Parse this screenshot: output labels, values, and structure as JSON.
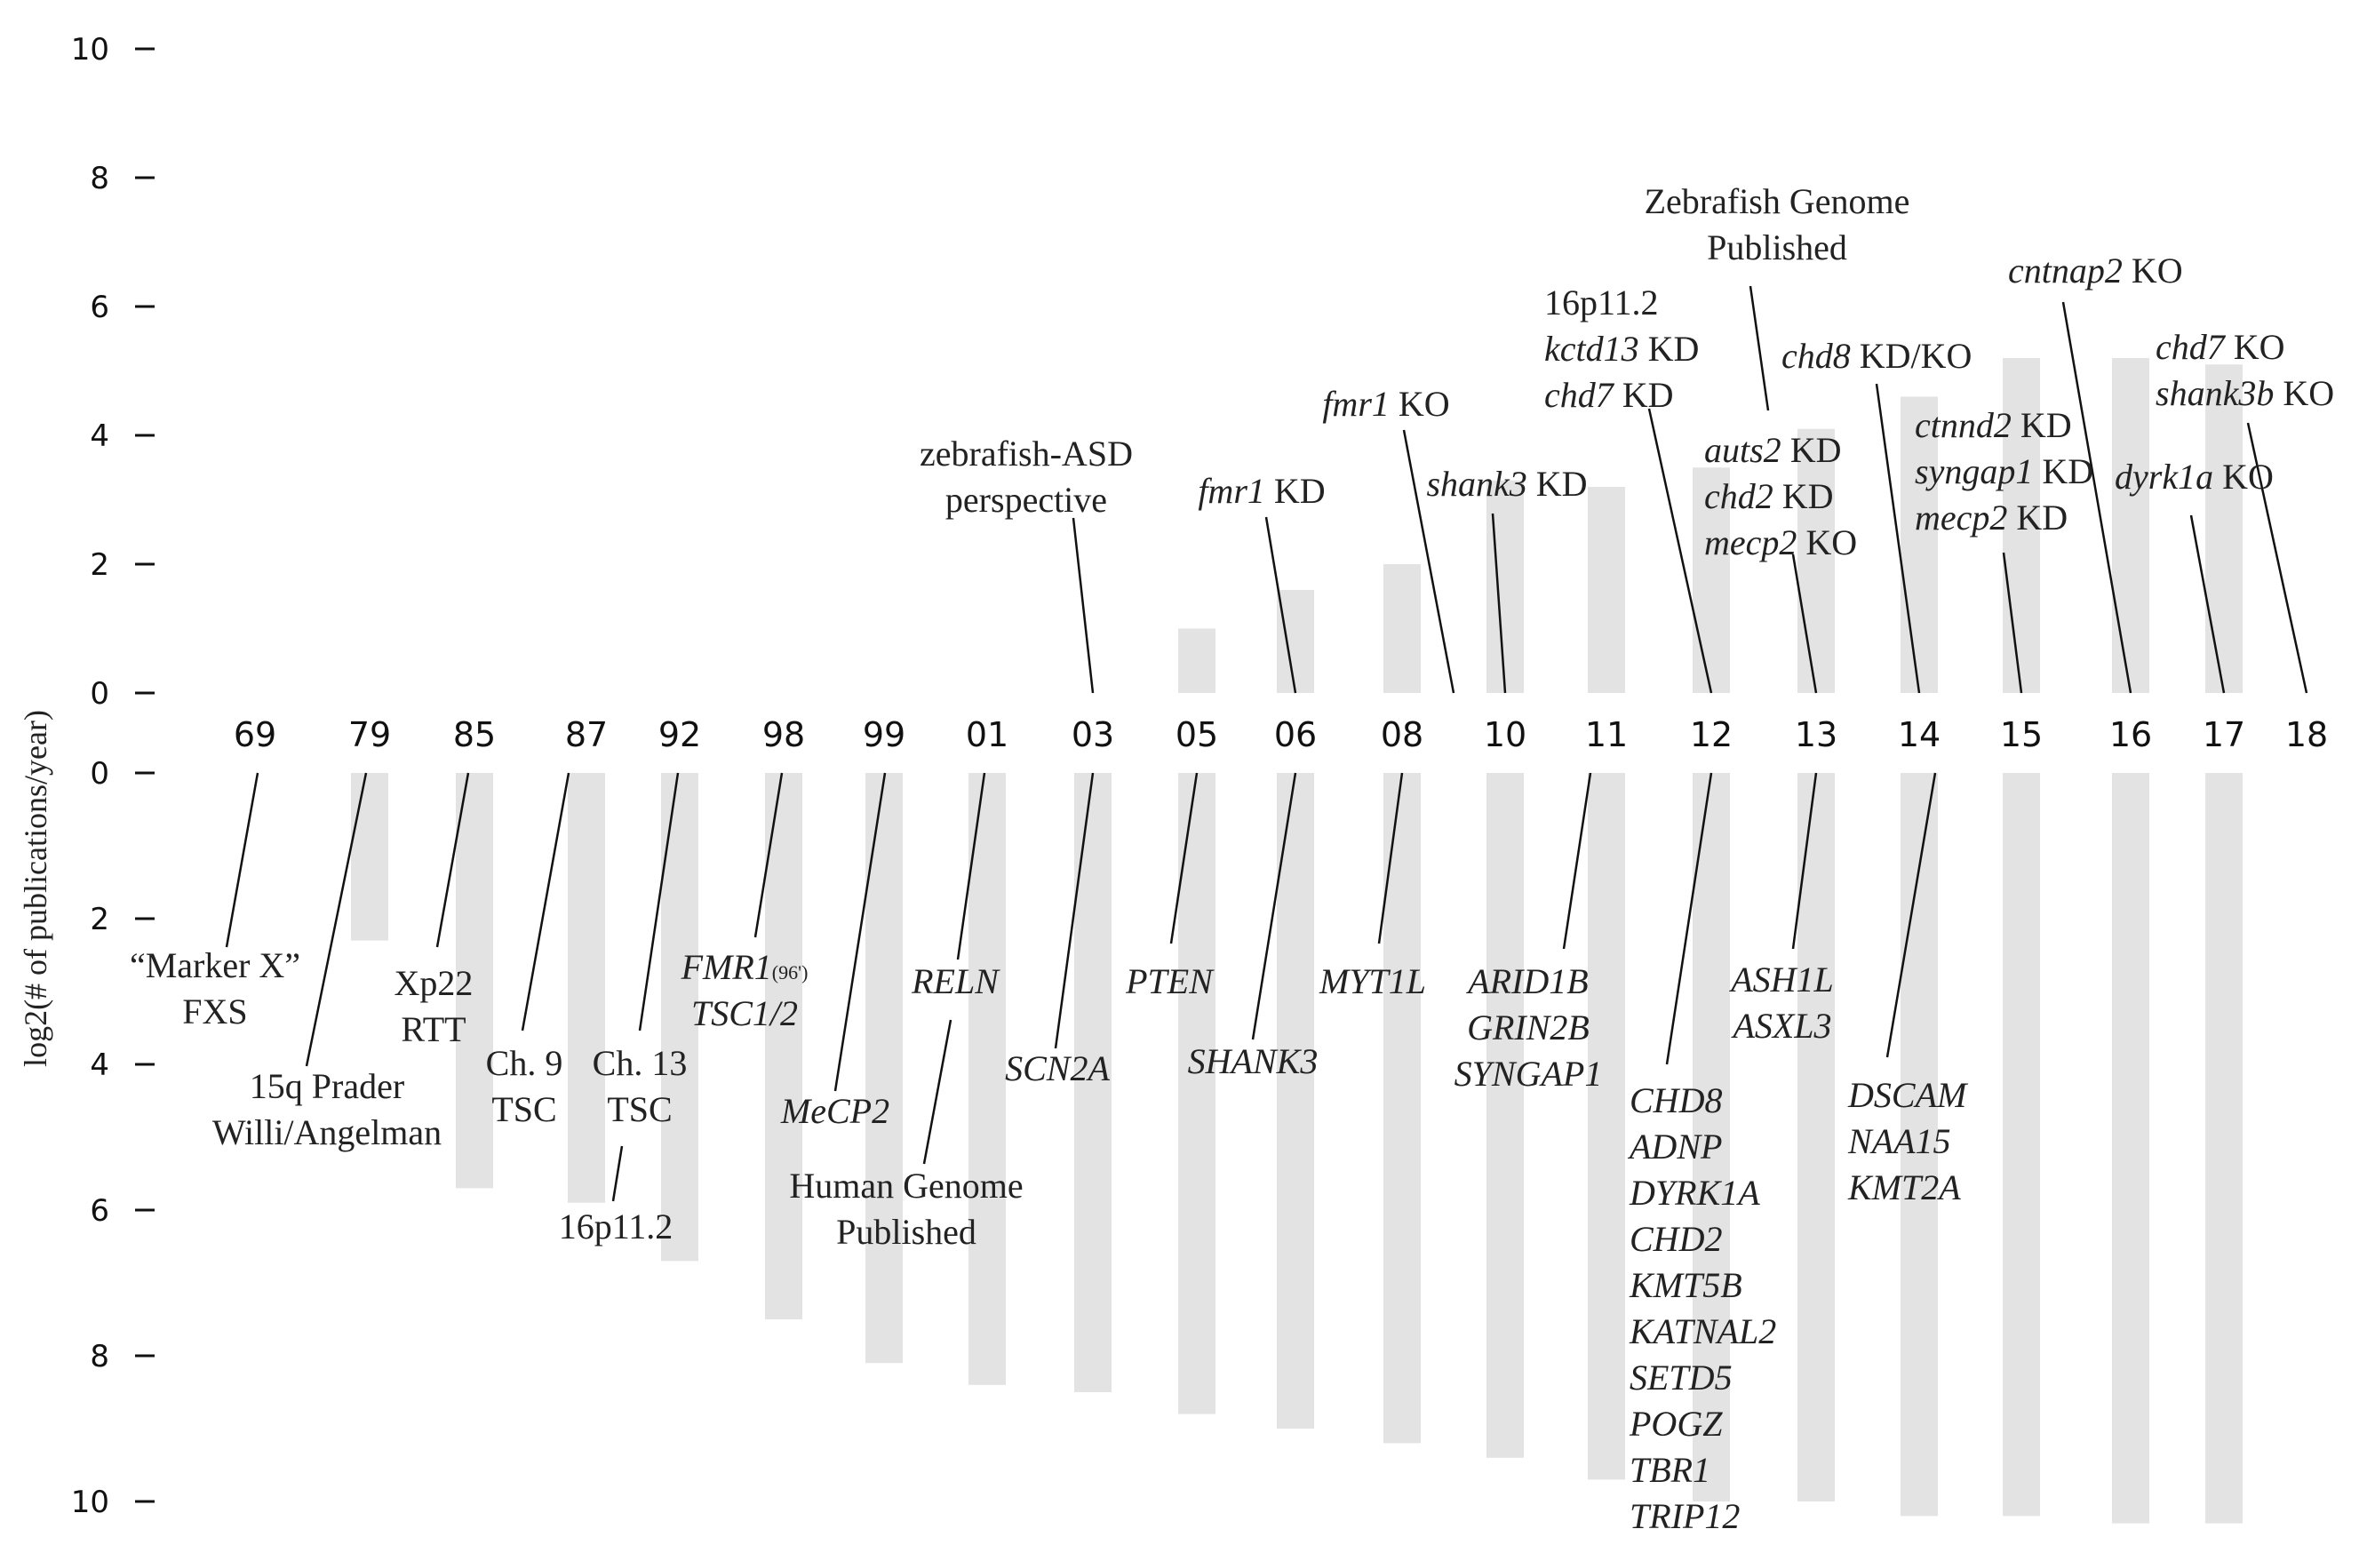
{
  "chart_data": {
    "type": "bar",
    "title": "",
    "ylabel": "log2(# of publications/year)",
    "categories": [
      "69",
      "79",
      "85",
      "87",
      "92",
      "98",
      "99",
      "01",
      "03",
      "05",
      "06",
      "08",
      "10",
      "11",
      "12",
      "13",
      "14",
      "15",
      "16",
      "17",
      "18"
    ],
    "ylim": [
      0,
      10
    ],
    "yticks": [
      0,
      2,
      4,
      6,
      8,
      10
    ],
    "grid": false,
    "series": [
      {
        "panel": "top",
        "values": [
          0,
          0,
          0,
          0,
          0,
          0,
          0,
          0,
          0,
          1.0,
          1.6,
          2.0,
          3.3,
          3.2,
          3.5,
          4.1,
          4.6,
          5.2,
          5.2,
          5.1,
          0
        ]
      },
      {
        "panel": "bottom",
        "values": [
          0,
          2.3,
          5.7,
          5.9,
          6.7,
          7.5,
          8.1,
          8.4,
          8.5,
          8.8,
          9.0,
          9.2,
          9.4,
          9.7,
          10.0,
          10.0,
          10.2,
          10.2,
          10.3,
          10.3,
          0
        ]
      }
    ],
    "annotations_top": [
      {
        "id": "zebrafish-asd",
        "at": "03",
        "lines": [
          {
            "parts": [
              {
                "t": "zebrafish-ASD",
                "i": false
              }
            ]
          },
          {
            "parts": [
              {
                "t": "perspective",
                "i": false
              }
            ]
          }
        ]
      },
      {
        "id": "fmr1-kd",
        "at": "06",
        "lines": [
          {
            "parts": [
              {
                "t": "fmr1",
                "i": true
              },
              {
                "t": " KD",
                "i": false
              }
            ]
          }
        ]
      },
      {
        "id": "fmr1-ko",
        "at": "09",
        "lines": [
          {
            "parts": [
              {
                "t": "fmr1",
                "i": true
              },
              {
                "t": " KO",
                "i": false
              }
            ]
          }
        ]
      },
      {
        "id": "shank3-kd",
        "at": "10",
        "lines": [
          {
            "parts": [
              {
                "t": "shank3",
                "i": true
              },
              {
                "t": " KD",
                "i": false
              }
            ]
          }
        ]
      },
      {
        "id": "16p-kctd13-chd7",
        "at": "12",
        "lines": [
          {
            "parts": [
              {
                "t": "16p11.2",
                "i": false
              }
            ]
          },
          {
            "parts": [
              {
                "t": "kctd13",
                "i": true
              },
              {
                "t": " KD",
                "i": false
              }
            ]
          },
          {
            "parts": [
              {
                "t": "chd7",
                "i": true
              },
              {
                "t": " KD",
                "i": false
              }
            ]
          }
        ]
      },
      {
        "id": "zebrafish-genome",
        "at": "12.5",
        "lines": [
          {
            "parts": [
              {
                "t": "Zebrafish Genome",
                "i": false
              }
            ]
          },
          {
            "parts": [
              {
                "t": "Published",
                "i": false
              }
            ]
          }
        ]
      },
      {
        "id": "auts2-chd2-mecp2",
        "at": "13",
        "lines": [
          {
            "parts": [
              {
                "t": "auts2",
                "i": true
              },
              {
                "t": " KD",
                "i": false
              }
            ]
          },
          {
            "parts": [
              {
                "t": "chd2",
                "i": true
              },
              {
                "t": " KD",
                "i": false
              }
            ]
          },
          {
            "parts": [
              {
                "t": "mecp2",
                "i": true
              },
              {
                "t": " KO",
                "i": false
              }
            ]
          }
        ]
      },
      {
        "id": "chd8-kdko",
        "at": "14",
        "lines": [
          {
            "parts": [
              {
                "t": "chd8",
                "i": true
              },
              {
                "t": " KD/KO",
                "i": false
              }
            ]
          }
        ]
      },
      {
        "id": "ctnnd2-syngap1-mecp2",
        "at": "15",
        "lines": [
          {
            "parts": [
              {
                "t": "ctnnd2",
                "i": true
              },
              {
                "t": " KD",
                "i": false
              }
            ]
          },
          {
            "parts": [
              {
                "t": "syngap1",
                "i": true
              },
              {
                "t": " KD",
                "i": false
              }
            ]
          },
          {
            "parts": [
              {
                "t": "mecp2",
                "i": true
              },
              {
                "t": " KD",
                "i": false
              }
            ]
          }
        ]
      },
      {
        "id": "cntnap2-ko",
        "at": "16",
        "lines": [
          {
            "parts": [
              {
                "t": "cntnap2",
                "i": true
              },
              {
                "t": " KO",
                "i": false
              }
            ]
          }
        ]
      },
      {
        "id": "dyrk1a-ko",
        "at": "17",
        "lines": [
          {
            "parts": [
              {
                "t": "dyrk1a",
                "i": true
              },
              {
                "t": " KO",
                "i": false
              }
            ]
          }
        ]
      },
      {
        "id": "chd7-shank3b-ko",
        "at": "18",
        "lines": [
          {
            "parts": [
              {
                "t": "chd7",
                "i": true
              },
              {
                "t": " KO",
                "i": false
              }
            ]
          },
          {
            "parts": [
              {
                "t": "shank3b",
                "i": true
              },
              {
                "t": " KO",
                "i": false
              }
            ]
          }
        ]
      }
    ],
    "annotations_bottom": [
      {
        "id": "marker-x",
        "at": "69",
        "lines": [
          {
            "parts": [
              {
                "t": "“Marker X”",
                "i": false
              }
            ]
          },
          {
            "parts": [
              {
                "t": "FXS",
                "i": false
              }
            ]
          }
        ]
      },
      {
        "id": "15q",
        "at": "79",
        "lines": [
          {
            "parts": [
              {
                "t": "15q Prader",
                "i": false
              }
            ]
          },
          {
            "parts": [
              {
                "t": "Willi/Angelman",
                "i": false
              }
            ]
          }
        ]
      },
      {
        "id": "xp22",
        "at": "85",
        "lines": [
          {
            "parts": [
              {
                "t": "Xp22",
                "i": false
              }
            ]
          },
          {
            "parts": [
              {
                "t": "RTT",
                "i": false
              }
            ]
          }
        ]
      },
      {
        "id": "ch9",
        "at": "87",
        "lines": [
          {
            "parts": [
              {
                "t": "Ch. 9",
                "i": false
              }
            ]
          },
          {
            "parts": [
              {
                "t": "TSC",
                "i": false
              }
            ]
          }
        ]
      },
      {
        "id": "ch13",
        "at": "92",
        "lines": [
          {
            "parts": [
              {
                "t": "Ch. 13",
                "i": false
              }
            ]
          },
          {
            "parts": [
              {
                "t": "TSC",
                "i": false
              }
            ]
          }
        ]
      },
      {
        "id": "16p-bottom",
        "at": "92",
        "lines": [
          {
            "parts": [
              {
                "t": "16p11.2",
                "i": false
              }
            ]
          }
        ]
      },
      {
        "id": "fmr1-tsc",
        "at": "98",
        "lines": [
          {
            "parts": [
              {
                "t": "FMR1",
                "i": true
              },
              {
                "t": "(96')",
                "i": false,
                "small": true
              }
            ]
          },
          {
            "parts": [
              {
                "t": "TSC1/2",
                "i": true
              }
            ]
          }
        ]
      },
      {
        "id": "mecp2",
        "at": "99",
        "lines": [
          {
            "parts": [
              {
                "t": "MeCP2",
                "i": true
              }
            ]
          }
        ]
      },
      {
        "id": "reln",
        "at": "01",
        "lines": [
          {
            "parts": [
              {
                "t": "RELN",
                "i": true
              }
            ]
          }
        ]
      },
      {
        "id": "human-genome",
        "at": "01",
        "lines": [
          {
            "parts": [
              {
                "t": "Human Genome",
                "i": false
              }
            ]
          },
          {
            "parts": [
              {
                "t": "Published",
                "i": false
              }
            ]
          }
        ]
      },
      {
        "id": "scn2a",
        "at": "03",
        "lines": [
          {
            "parts": [
              {
                "t": "SCN2A",
                "i": true
              }
            ]
          }
        ]
      },
      {
        "id": "pten",
        "at": "05",
        "lines": [
          {
            "parts": [
              {
                "t": "PTEN",
                "i": true
              }
            ]
          }
        ]
      },
      {
        "id": "shank3",
        "at": "06",
        "lines": [
          {
            "parts": [
              {
                "t": "SHANK3",
                "i": true
              }
            ]
          }
        ]
      },
      {
        "id": "myt1l",
        "at": "08",
        "lines": [
          {
            "parts": [
              {
                "t": "MYT1L",
                "i": true
              }
            ]
          }
        ]
      },
      {
        "id": "arid1b",
        "at": "11",
        "lines": [
          {
            "parts": [
              {
                "t": "ARID1B",
                "i": true
              }
            ]
          },
          {
            "parts": [
              {
                "t": "GRIN2B",
                "i": true
              }
            ]
          },
          {
            "parts": [
              {
                "t": "SYNGAP1",
                "i": true
              }
            ]
          }
        ]
      },
      {
        "id": "chd8-list",
        "at": "12",
        "lines": [
          {
            "parts": [
              {
                "t": "CHD8",
                "i": true
              }
            ]
          },
          {
            "parts": [
              {
                "t": "ADNP",
                "i": true
              }
            ]
          },
          {
            "parts": [
              {
                "t": "DYRK1A",
                "i": true
              }
            ]
          },
          {
            "parts": [
              {
                "t": "CHD2",
                "i": true
              }
            ]
          },
          {
            "parts": [
              {
                "t": "KMT5B",
                "i": true
              }
            ]
          },
          {
            "parts": [
              {
                "t": "KATNAL2",
                "i": true
              }
            ]
          },
          {
            "parts": [
              {
                "t": "SETD5",
                "i": true
              }
            ]
          },
          {
            "parts": [
              {
                "t": "POGZ",
                "i": true
              }
            ]
          },
          {
            "parts": [
              {
                "t": "TBR1",
                "i": true
              }
            ]
          },
          {
            "parts": [
              {
                "t": "TRIP12",
                "i": true
              }
            ]
          }
        ]
      },
      {
        "id": "ash1l",
        "at": "13",
        "lines": [
          {
            "parts": [
              {
                "t": "ASH1L",
                "i": true
              }
            ]
          },
          {
            "parts": [
              {
                "t": "ASXL3",
                "i": true
              }
            ]
          }
        ]
      },
      {
        "id": "dscam",
        "at": "14",
        "lines": [
          {
            "parts": [
              {
                "t": "DSCAM",
                "i": true
              }
            ]
          },
          {
            "parts": [
              {
                "t": "NAA15",
                "i": true
              }
            ]
          },
          {
            "parts": [
              {
                "t": "KMT2A",
                "i": true
              }
            ]
          }
        ]
      }
    ]
  },
  "colors": {
    "bar": "#e3e3e3",
    "text": "#222222",
    "line": "#111111"
  }
}
